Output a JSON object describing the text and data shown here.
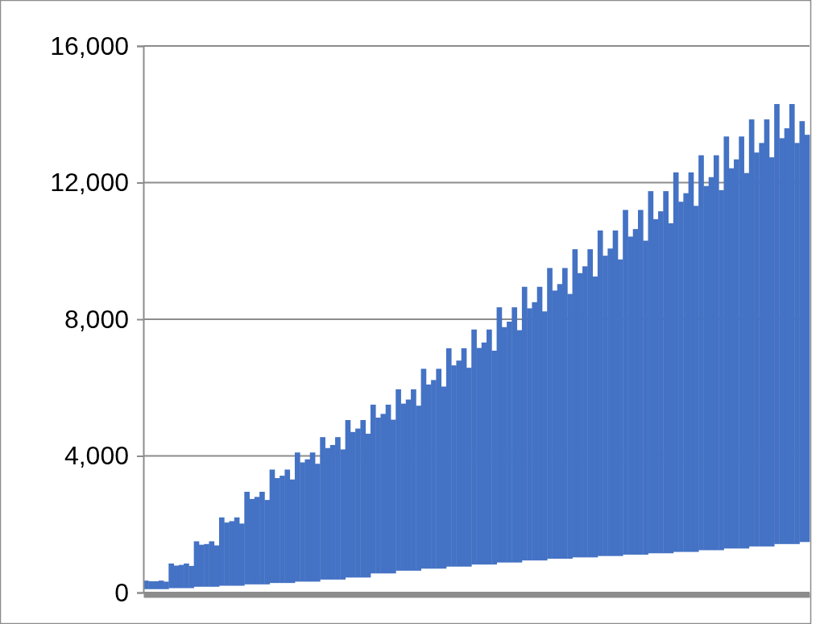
{
  "chart_data": {
    "type": "bar",
    "color": "#4472c4",
    "categories": [
      null,
      null,
      null,
      null,
      null,
      null,
      null,
      null,
      null,
      null,
      null,
      null,
      null,
      null,
      null,
      null,
      null,
      null,
      null,
      null,
      null,
      null,
      null,
      null,
      null,
      null,
      null,
      null,
      null,
      null,
      null,
      null,
      null,
      null,
      null,
      null,
      null,
      null,
      null,
      null,
      null,
      null,
      null,
      null,
      null,
      null,
      null,
      null,
      null,
      null,
      null,
      null,
      null,
      null,
      null,
      null,
      null,
      null,
      null,
      null,
      null,
      null,
      null,
      null,
      null,
      null,
      null,
      null,
      null,
      null,
      null,
      null,
      null,
      null,
      null,
      null,
      null,
      null,
      null,
      null,
      null,
      null,
      null,
      null,
      null,
      null,
      null,
      null,
      null,
      null,
      null,
      null,
      null,
      null,
      null,
      null,
      null,
      null,
      null,
      null,
      null,
      null,
      null,
      null,
      null,
      null,
      null,
      null,
      null,
      null,
      null,
      null,
      null,
      null,
      null,
      null,
      null,
      null,
      null,
      null,
      null,
      null,
      null,
      null,
      null,
      null,
      null,
      null,
      null,
      null,
      null,
      null
    ],
    "base": [
      100,
      100,
      100,
      100,
      100,
      130,
      130,
      130,
      130,
      130,
      170,
      170,
      170,
      170,
      170,
      200,
      200,
      200,
      200,
      200,
      240,
      240,
      240,
      240,
      240,
      280,
      280,
      280,
      280,
      280,
      320,
      320,
      320,
      320,
      320,
      380,
      380,
      380,
      380,
      380,
      440,
      440,
      440,
      440,
      440,
      560,
      560,
      560,
      560,
      560,
      640,
      640,
      640,
      640,
      640,
      700,
      700,
      700,
      700,
      700,
      760,
      760,
      760,
      760,
      760,
      820,
      820,
      820,
      820,
      820,
      880,
      880,
      880,
      880,
      880,
      940,
      940,
      940,
      940,
      940,
      990,
      990,
      990,
      990,
      990,
      1030,
      1030,
      1030,
      1030,
      1030,
      1070,
      1070,
      1070,
      1070,
      1070,
      1110,
      1110,
      1110,
      1110,
      1110,
      1150,
      1150,
      1150,
      1150,
      1150,
      1190,
      1190,
      1190,
      1190,
      1190,
      1240,
      1240,
      1240,
      1240,
      1240,
      1290,
      1290,
      1290,
      1290,
      1290,
      1350,
      1350,
      1350,
      1350,
      1350,
      1420,
      1420,
      1420,
      1420,
      1420,
      1480,
      1480
    ],
    "values": [
      250,
      230,
      230,
      250,
      220,
      720,
      660,
      680,
      720,
      650,
      1330,
      1230,
      1250,
      1330,
      1210,
      2000,
      1850,
      1890,
      2000,
      1820,
      2710,
      2500,
      2560,
      2710,
      2470,
      3320,
      3070,
      3140,
      3320,
      3030,
      3780,
      3490,
      3580,
      3780,
      3450,
      4170,
      3850,
      3940,
      4170,
      3810,
      4610,
      4260,
      4360,
      4610,
      4210,
      4940,
      4560,
      4670,
      4940,
      4500,
      5310,
      4890,
      5010,
      5310,
      4830,
      5850,
      5390,
      5520,
      5850,
      5330,
      6390,
      5890,
      6030,
      6390,
      5820,
      6880,
      6340,
      6500,
      6880,
      6260,
      7470,
      6890,
      7050,
      7470,
      6800,
      8010,
      7380,
      7560,
      8010,
      7290,
      8510,
      7850,
      8040,
      8510,
      7750,
      9020,
      8320,
      8520,
      9020,
      8220,
      9530,
      8790,
      9000,
      9530,
      8680,
      10090,
      9310,
      9530,
      10090,
      9190,
      10600,
      9780,
      10010,
      10600,
      9660,
      11110,
      10250,
      10500,
      11110,
      10130,
      11560,
      10660,
      10920,
      11560,
      10540,
      12060,
      11130,
      11390,
      12060,
      10990,
      12500,
      11530,
      11810,
      12500,
      11390,
      12880,
      11880,
      12170,
      12880,
      11740,
      12320,
      11920
    ],
    "ylim": [
      0,
      16000
    ],
    "yticks": [
      {
        "value": 0,
        "label": "0"
      },
      {
        "value": 4000,
        "label": "4,000"
      },
      {
        "value": 8000,
        "label": "8,000"
      },
      {
        "value": 12000,
        "label": "12,000"
      },
      {
        "value": 16000,
        "label": "16,000"
      }
    ],
    "grid": "y"
  }
}
